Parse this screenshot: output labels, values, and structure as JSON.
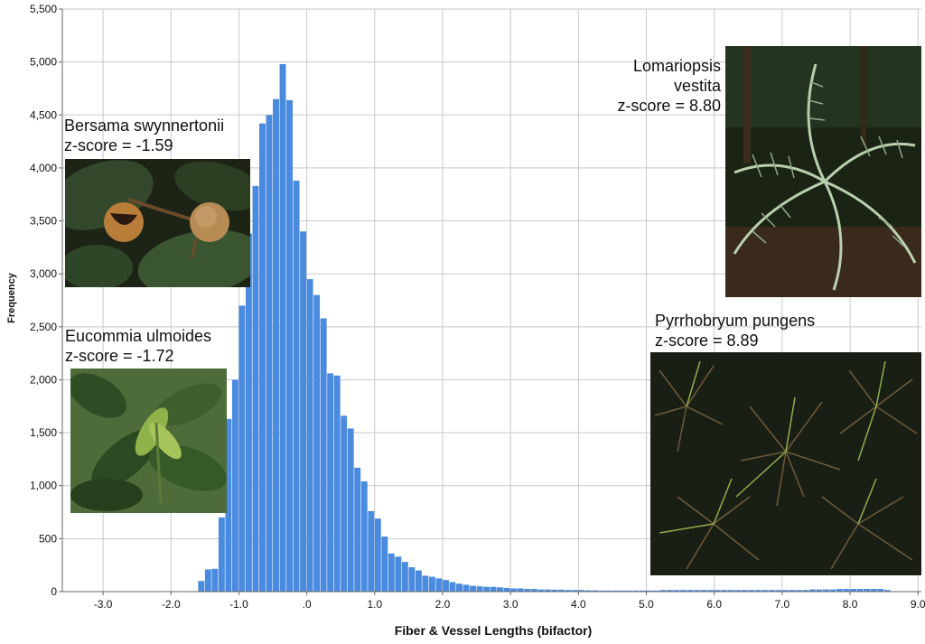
{
  "chart_data": {
    "type": "bar",
    "subtype": "histogram",
    "xlabel": "Fiber & Vessel Lengths (bifactor)",
    "ylabel": "Frequency",
    "xlim": [
      -3.6,
      9.05
    ],
    "ylim": [
      0,
      5500
    ],
    "grid": true,
    "bar_color": "#4a8be0",
    "xticks": [
      -3.0,
      -2.0,
      -1.0,
      0.0,
      1.0,
      2.0,
      3.0,
      4.0,
      5.0,
      6.0,
      7.0,
      8.0,
      9.0
    ],
    "xtick_labels": [
      "-3.0",
      "-2.0",
      "-1.0",
      ".0",
      "1.0",
      "2.0",
      "3.0",
      "4.0",
      "5.0",
      "6.0",
      "7.0",
      "8.0",
      "9.0"
    ],
    "yticks": [
      0,
      500,
      1000,
      1500,
      2000,
      2500,
      3000,
      3500,
      4000,
      4500,
      5000,
      5500
    ],
    "ytick_labels": [
      "0",
      "500",
      "1,000",
      "1,500",
      "2,000",
      "2,500",
      "3,000",
      "3,500",
      "4,000",
      "4,500",
      "5,000",
      "5,500"
    ],
    "bin_start": -1.6,
    "bin_width": 0.1,
    "values": [
      100,
      210,
      215,
      700,
      1630,
      2000,
      2700,
      3380,
      3830,
      4420,
      4500,
      4650,
      4980,
      4640,
      3880,
      3400,
      2950,
      2800,
      2580,
      2060,
      2040,
      1660,
      1540,
      1170,
      1040,
      760,
      690,
      520,
      360,
      330,
      280,
      230,
      200,
      150,
      140,
      125,
      110,
      90,
      75,
      65,
      55,
      50,
      45,
      45,
      40,
      35,
      30,
      30,
      25,
      25,
      20,
      20,
      18,
      18,
      15,
      15,
      15,
      12,
      12,
      10,
      10,
      10,
      10,
      10,
      10,
      10,
      10,
      10,
      15,
      15,
      15,
      15,
      15,
      15,
      15,
      15,
      15,
      15,
      15,
      15,
      15,
      15,
      15,
      15,
      15,
      15,
      15,
      15,
      15,
      15,
      20,
      20,
      20,
      20,
      25,
      25,
      25,
      25,
      25,
      25,
      25,
      15
    ],
    "annotations": [
      {
        "species": "Bersama swynnertonii",
        "score": "z-score = -1.59"
      },
      {
        "species": "Eucommia ulmoides",
        "score": "z-score = -1.72"
      },
      {
        "species_line1": "Lomariopsis",
        "species_line2": "vestita",
        "score": "z-score = 8.80"
      },
      {
        "species": "Pyrrhobryum pungens",
        "score": "z-score = 8.89"
      }
    ]
  }
}
